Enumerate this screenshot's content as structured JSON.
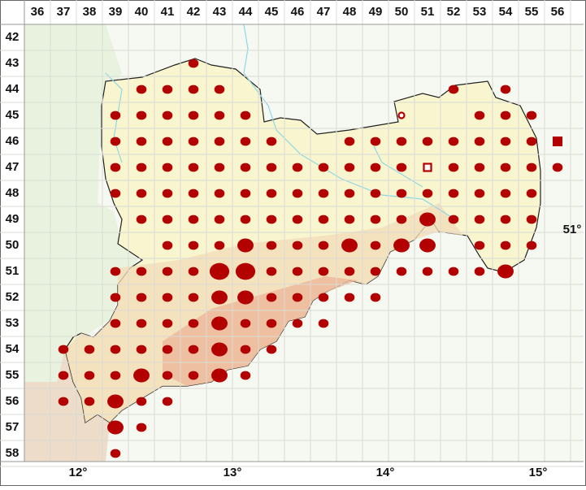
{
  "columns": [
    "36",
    "37",
    "38",
    "39",
    "40",
    "41",
    "42",
    "43",
    "44",
    "45",
    "46",
    "47",
    "48",
    "49",
    "50",
    "51",
    "52",
    "53",
    "54",
    "55",
    "56"
  ],
  "rows": [
    "42",
    "43",
    "44",
    "45",
    "46",
    "47",
    "48",
    "49",
    "50",
    "51",
    "52",
    "53",
    "54",
    "55",
    "56",
    "57",
    "58"
  ],
  "longitudes": [
    "12°",
    "13°",
    "14°",
    "15°"
  ],
  "latitudes": [
    "51°"
  ],
  "occurrences": [
    {
      "row": 43,
      "cols": [
        42
      ],
      "sizes": [
        1
      ]
    },
    {
      "row": 44,
      "cols": [
        40,
        41,
        42,
        43,
        52,
        54
      ],
      "sizes": [
        1,
        1,
        1,
        1,
        1,
        1
      ]
    },
    {
      "row": 45,
      "cols": [
        39,
        40,
        41,
        42,
        43,
        44,
        53,
        54,
        55
      ],
      "sizes": [
        1,
        1,
        1,
        1,
        1,
        1,
        1,
        1,
        1
      ]
    },
    {
      "row": 46,
      "cols": [
        39,
        40,
        41,
        42,
        43,
        44,
        45,
        48,
        49,
        50,
        51,
        52,
        53,
        54,
        55
      ],
      "sizes": [
        1,
        1,
        1,
        1,
        1,
        1,
        1,
        1,
        1,
        1,
        1,
        1,
        1,
        1,
        1
      ]
    },
    {
      "row": 47,
      "cols": [
        39,
        40,
        41,
        42,
        43,
        44,
        45,
        46,
        47,
        48,
        49,
        50,
        52,
        53,
        54,
        55,
        56
      ],
      "sizes": [
        1,
        1,
        1,
        1,
        1,
        1,
        1,
        1,
        1,
        1,
        1,
        1,
        1,
        1,
        1,
        1,
        1
      ]
    },
    {
      "row": 48,
      "cols": [
        39,
        40,
        41,
        42,
        43,
        44,
        45,
        46,
        47,
        48,
        49,
        50,
        51,
        52,
        53,
        54,
        55
      ],
      "sizes": [
        1,
        1,
        1,
        1,
        1,
        1,
        1,
        1,
        1,
        1,
        1,
        1,
        1,
        1,
        1,
        1,
        1
      ]
    },
    {
      "row": 49,
      "cols": [
        40,
        41,
        42,
        43,
        44,
        45,
        46,
        47,
        48,
        49,
        50,
        51,
        52,
        53,
        54,
        55
      ],
      "sizes": [
        1,
        1,
        1,
        1,
        1,
        1,
        1,
        1,
        1,
        1,
        1,
        2,
        1,
        1,
        1,
        1
      ]
    },
    {
      "row": 50,
      "cols": [
        41,
        42,
        43,
        44,
        45,
        46,
        47,
        48,
        49,
        50,
        51,
        53,
        54,
        55
      ],
      "sizes": [
        1,
        1,
        1,
        2,
        1,
        1,
        1,
        2,
        1,
        2,
        2,
        1,
        1,
        1
      ]
    },
    {
      "row": 51,
      "cols": [
        39,
        40,
        41,
        42,
        43,
        44,
        45,
        46,
        47,
        48,
        49,
        50,
        51,
        52,
        53,
        54
      ],
      "sizes": [
        1,
        1,
        1,
        1,
        3,
        3,
        1,
        1,
        1,
        1,
        1,
        1,
        1,
        1,
        1,
        2
      ]
    },
    {
      "row": 52,
      "cols": [
        39,
        40,
        41,
        42,
        43,
        44,
        45,
        46,
        47,
        48,
        49
      ],
      "sizes": [
        1,
        1,
        1,
        1,
        2,
        2,
        1,
        1,
        1,
        1,
        1
      ]
    },
    {
      "row": 53,
      "cols": [
        39,
        40,
        41,
        42,
        43,
        44,
        45,
        46,
        47
      ],
      "sizes": [
        1,
        1,
        1,
        1,
        2,
        1,
        1,
        1,
        1
      ]
    },
    {
      "row": 54,
      "cols": [
        37,
        38,
        39,
        40,
        41,
        42,
        43,
        44,
        45
      ],
      "sizes": [
        1,
        1,
        1,
        1,
        1,
        1,
        2,
        1,
        1
      ]
    },
    {
      "row": 55,
      "cols": [
        37,
        38,
        39,
        40,
        41,
        42,
        43,
        44
      ],
      "sizes": [
        1,
        1,
        1,
        2,
        1,
        1,
        2,
        1
      ]
    },
    {
      "row": 56,
      "cols": [
        37,
        38,
        39,
        40,
        41
      ],
      "sizes": [
        1,
        1,
        2,
        1,
        1
      ]
    },
    {
      "row": 57,
      "cols": [
        39,
        40
      ],
      "sizes": [
        2,
        1
      ]
    },
    {
      "row": 58,
      "cols": [
        39
      ],
      "sizes": [
        1
      ]
    }
  ],
  "specials": [
    {
      "row": 45,
      "col": 50,
      "symbol": "circle-open"
    },
    {
      "row": 46,
      "col": 56,
      "symbol": "square"
    },
    {
      "row": 47,
      "col": 51,
      "symbol": "square-open"
    }
  ]
}
